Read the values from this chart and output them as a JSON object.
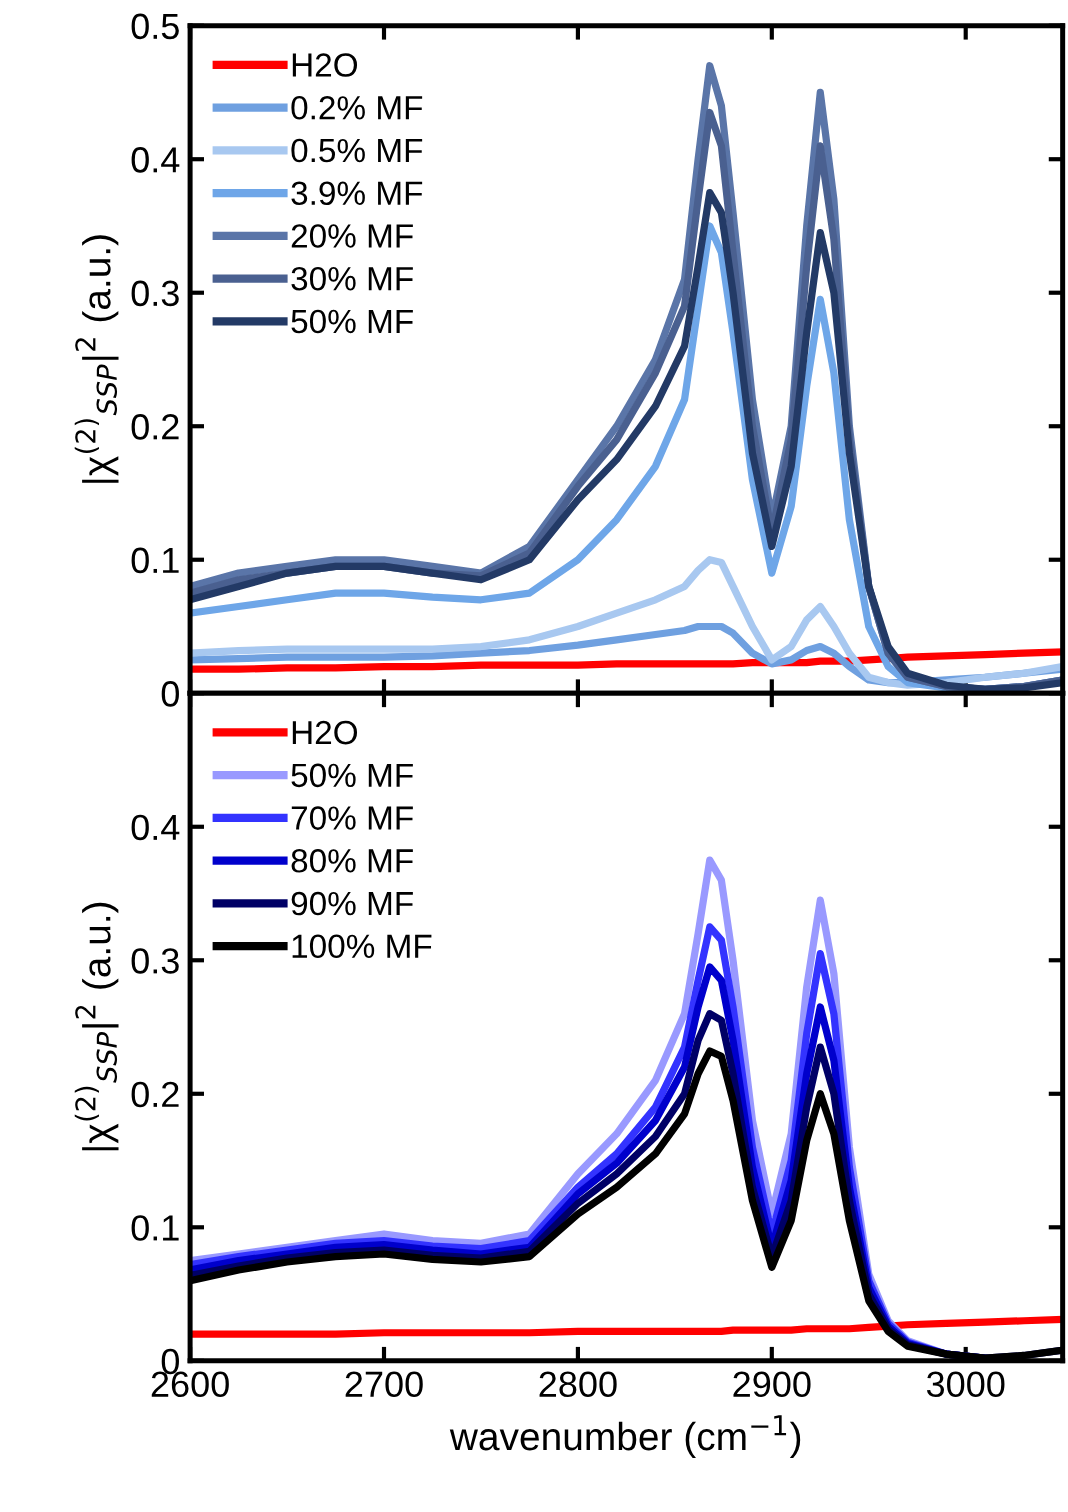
{
  "chart_data": [
    {
      "type": "line",
      "ylabel": "|χ$^{(2)}$$_{SSP}$|$^{2}$ (a.u.)",
      "xlim": [
        2600,
        3050
      ],
      "xticks": [
        2600,
        2700,
        2800,
        2900,
        3000
      ],
      "ylim": [
        0,
        0.5
      ],
      "yticks": [
        0,
        0.1,
        0.2,
        0.3,
        0.4,
        0.5
      ],
      "tick_labels": "y",
      "legend": "top left",
      "grid": false,
      "marker": "none",
      "line_style": "solid",
      "x": [
        2600,
        2625,
        2650,
        2675,
        2700,
        2725,
        2750,
        2775,
        2800,
        2820,
        2840,
        2855,
        2862,
        2868,
        2874,
        2880,
        2890,
        2900,
        2910,
        2918,
        2925,
        2932,
        2940,
        2950,
        2960,
        2970,
        2990,
        3010,
        3030,
        3050
      ],
      "series": [
        {
          "name": "H2O",
          "color": "#ff0000",
          "values": [
            0.018,
            0.018,
            0.019,
            0.019,
            0.02,
            0.02,
            0.021,
            0.021,
            0.021,
            0.022,
            0.022,
            0.022,
            0.022,
            0.022,
            0.022,
            0.022,
            0.023,
            0.023,
            0.023,
            0.023,
            0.024,
            0.024,
            0.024,
            0.025,
            0.026,
            0.027,
            0.028,
            0.029,
            0.03,
            0.031
          ]
        },
        {
          "name": "0.2% MF",
          "color": "#6fa0e0",
          "values": [
            0.025,
            0.026,
            0.027,
            0.027,
            0.027,
            0.028,
            0.03,
            0.032,
            0.036,
            0.04,
            0.044,
            0.047,
            0.05,
            0.05,
            0.05,
            0.045,
            0.03,
            0.022,
            0.025,
            0.032,
            0.035,
            0.03,
            0.02,
            0.01,
            0.008,
            0.008,
            0.01,
            0.012,
            0.015,
            0.018
          ]
        },
        {
          "name": "0.5% MF",
          "color": "#a8c8f0",
          "values": [
            0.03,
            0.032,
            0.033,
            0.033,
            0.033,
            0.033,
            0.035,
            0.04,
            0.05,
            0.06,
            0.07,
            0.08,
            0.092,
            0.1,
            0.098,
            0.08,
            0.05,
            0.025,
            0.035,
            0.055,
            0.065,
            0.05,
            0.03,
            0.012,
            0.008,
            0.006,
            0.008,
            0.012,
            0.015,
            0.02
          ]
        },
        {
          "name": "3.9% MF",
          "color": "#6ea6e8",
          "values": [
            0.06,
            0.065,
            0.07,
            0.075,
            0.075,
            0.072,
            0.07,
            0.075,
            0.1,
            0.13,
            0.17,
            0.22,
            0.29,
            0.35,
            0.33,
            0.27,
            0.16,
            0.09,
            0.14,
            0.23,
            0.295,
            0.24,
            0.13,
            0.05,
            0.02,
            0.008,
            0.004,
            0.003,
            0.005,
            0.01
          ]
        },
        {
          "name": "20% MF",
          "color": "#5a75a8",
          "values": [
            0.08,
            0.09,
            0.095,
            0.1,
            0.1,
            0.095,
            0.09,
            0.11,
            0.16,
            0.2,
            0.25,
            0.31,
            0.4,
            0.47,
            0.44,
            0.36,
            0.22,
            0.13,
            0.2,
            0.35,
            0.45,
            0.37,
            0.2,
            0.08,
            0.03,
            0.012,
            0.005,
            0.003,
            0.005,
            0.01
          ]
        },
        {
          "name": "30% MF",
          "color": "#4a6090",
          "values": [
            0.075,
            0.085,
            0.09,
            0.095,
            0.095,
            0.09,
            0.088,
            0.105,
            0.155,
            0.19,
            0.24,
            0.29,
            0.37,
            0.435,
            0.41,
            0.33,
            0.2,
            0.12,
            0.19,
            0.32,
            0.41,
            0.34,
            0.19,
            0.08,
            0.03,
            0.012,
            0.005,
            0.003,
            0.005,
            0.01
          ]
        },
        {
          "name": "50% MF",
          "color": "#233a66",
          "values": [
            0.07,
            0.08,
            0.09,
            0.095,
            0.095,
            0.09,
            0.085,
            0.1,
            0.145,
            0.175,
            0.215,
            0.26,
            0.32,
            0.375,
            0.36,
            0.3,
            0.18,
            0.11,
            0.17,
            0.27,
            0.345,
            0.3,
            0.18,
            0.08,
            0.035,
            0.015,
            0.006,
            0.003,
            0.004,
            0.008
          ]
        }
      ]
    },
    {
      "type": "line",
      "xlabel": "wavenumber (cm$^{−1}$)",
      "ylabel": "|χ$^{(2)}$$_{SSP}$|$^{2}$ (a.u.)",
      "xlim": [
        2600,
        3050
      ],
      "xticks": [
        2600,
        2700,
        2800,
        2900,
        3000
      ],
      "ylim": [
        0,
        0.5
      ],
      "yticks": [
        0,
        0.1,
        0.2,
        0.3,
        0.4,
        {
          "value": 0.5,
          "label": null
        }
      ],
      "legend": "top left",
      "grid": false,
      "marker": "none",
      "line_style": "solid",
      "x": [
        2600,
        2625,
        2650,
        2675,
        2700,
        2725,
        2750,
        2775,
        2800,
        2820,
        2840,
        2855,
        2862,
        2868,
        2874,
        2880,
        2890,
        2900,
        2910,
        2918,
        2925,
        2932,
        2940,
        2950,
        2960,
        2970,
        2990,
        3010,
        3030,
        3050
      ],
      "series": [
        {
          "name": "H2O",
          "color": "#ff0000",
          "values": [
            0.02,
            0.02,
            0.02,
            0.02,
            0.021,
            0.021,
            0.021,
            0.021,
            0.022,
            0.022,
            0.022,
            0.022,
            0.022,
            0.022,
            0.022,
            0.023,
            0.023,
            0.023,
            0.023,
            0.024,
            0.024,
            0.024,
            0.024,
            0.025,
            0.026,
            0.027,
            0.028,
            0.029,
            0.03,
            0.031
          ]
        },
        {
          "name": "50% MF",
          "color": "#9999ff",
          "values": [
            0.075,
            0.08,
            0.085,
            0.09,
            0.095,
            0.09,
            0.088,
            0.095,
            0.14,
            0.17,
            0.21,
            0.26,
            0.32,
            0.375,
            0.36,
            0.3,
            0.18,
            0.11,
            0.17,
            0.28,
            0.345,
            0.29,
            0.16,
            0.065,
            0.03,
            0.015,
            0.005,
            0.002,
            null,
            null
          ]
        },
        {
          "name": "70% MF",
          "color": "#3333ff",
          "values": [
            0.072,
            0.078,
            0.083,
            0.088,
            0.09,
            0.086,
            0.084,
            0.09,
            0.13,
            0.155,
            0.19,
            0.235,
            0.285,
            0.325,
            0.315,
            0.265,
            0.16,
            0.095,
            0.15,
            0.245,
            0.305,
            0.26,
            0.145,
            0.06,
            0.028,
            0.014,
            0.005,
            0.002,
            null,
            null
          ]
        },
        {
          "name": "80% MF",
          "color": "#0000cc",
          "values": [
            0.068,
            0.075,
            0.08,
            0.085,
            0.087,
            0.083,
            0.08,
            0.085,
            0.125,
            0.148,
            0.18,
            0.22,
            0.265,
            0.295,
            0.285,
            0.24,
            0.145,
            0.085,
            0.135,
            0.215,
            0.265,
            0.225,
            0.13,
            0.055,
            0.026,
            0.013,
            0.005,
            0.002,
            null,
            null
          ]
        },
        {
          "name": "90% MF",
          "color": "#000066",
          "values": [
            0.064,
            0.071,
            0.077,
            0.081,
            0.083,
            0.079,
            0.077,
            0.082,
            0.118,
            0.14,
            0.168,
            0.2,
            0.24,
            0.26,
            0.255,
            0.215,
            0.13,
            0.078,
            0.12,
            0.19,
            0.235,
            0.2,
            0.12,
            0.05,
            0.024,
            0.012,
            0.005,
            0.002,
            0.004,
            0.008
          ]
        },
        {
          "name": "100% MF",
          "color": "#000000",
          "values": [
            0.06,
            0.068,
            0.074,
            0.078,
            0.08,
            0.076,
            0.074,
            0.078,
            0.11,
            0.13,
            0.155,
            0.185,
            0.215,
            0.232,
            0.228,
            0.195,
            0.12,
            0.07,
            0.105,
            0.165,
            0.2,
            0.17,
            0.105,
            0.045,
            0.022,
            0.011,
            0.005,
            0.002,
            0.004,
            0.008
          ]
        }
      ]
    }
  ]
}
